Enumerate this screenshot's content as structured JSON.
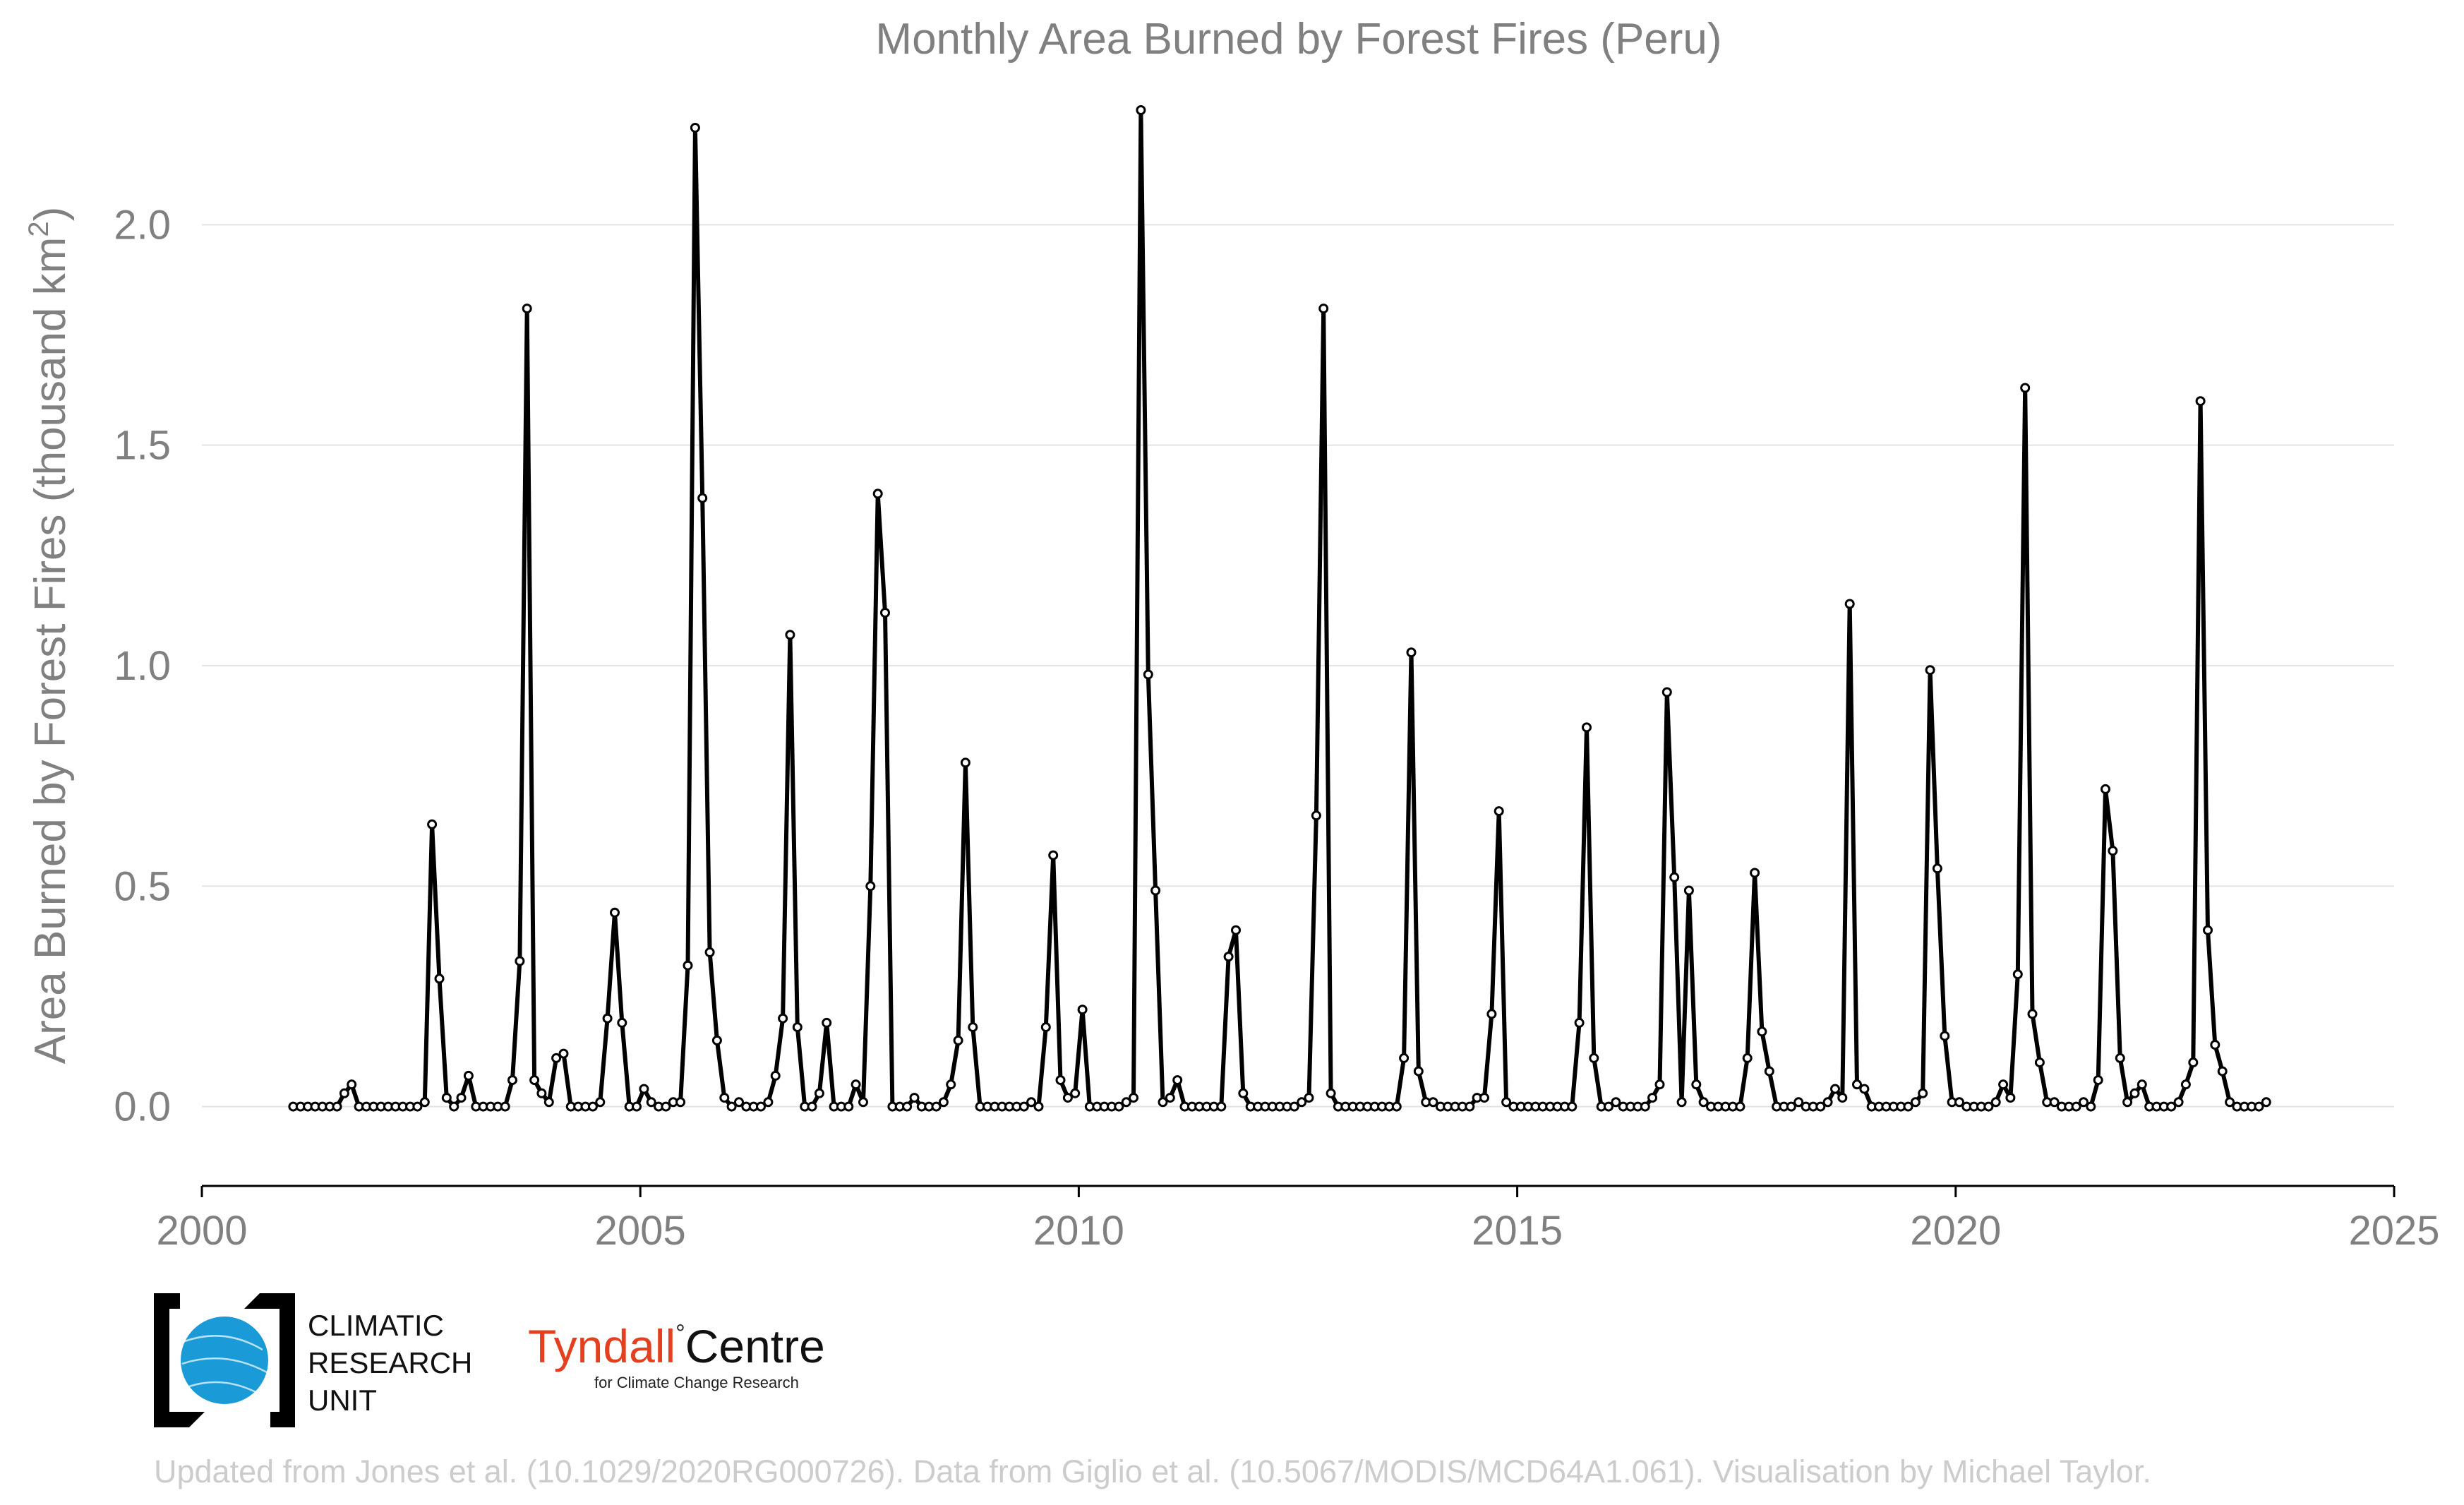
{
  "chart_data": {
    "type": "line",
    "title": "Monthly Area Burned by Forest Fires (Peru)",
    "ylabel": "Area Burned by Forest Fires (thousand km",
    "ylabel_superscript": "2",
    "ylabel_close": ")",
    "xlim": [
      2000,
      2025
    ],
    "ylim": [
      -0.18,
      2.3
    ],
    "x_ticks": [
      2000,
      2005,
      2010,
      2015,
      2020,
      2025
    ],
    "x_tick_labels": [
      "2000",
      "2005",
      "2010",
      "2015",
      "2020",
      "2025"
    ],
    "y_ticks": [
      0.0,
      0.5,
      1.0,
      1.5,
      2.0
    ],
    "y_tick_labels": [
      "0.0",
      "0.5",
      "1.0",
      "1.5",
      "2.0"
    ],
    "grid": "horizontal",
    "line_color": "#000000",
    "start_year": 2001,
    "series": [
      {
        "x_description": "monthly, January 2001 to May 2023",
        "values": [
          0.0,
          0.0,
          0.0,
          0.0,
          0.0,
          0.0,
          0.0,
          0.03,
          0.05,
          0.0,
          0.0,
          0.0,
          0.0,
          0.0,
          0.0,
          0.0,
          0.0,
          0.0,
          0.01,
          0.64,
          0.29,
          0.02,
          0.0,
          0.02,
          0.07,
          0.0,
          0.0,
          0.0,
          0.0,
          0.0,
          0.06,
          0.33,
          1.81,
          0.06,
          0.03,
          0.01,
          0.11,
          0.12,
          0.0,
          0.0,
          0.0,
          0.0,
          0.01,
          0.2,
          0.44,
          0.19,
          0.0,
          0.0,
          0.04,
          0.01,
          0.0,
          0.0,
          0.01,
          0.01,
          0.32,
          2.22,
          1.38,
          0.35,
          0.15,
          0.02,
          0.0,
          0.01,
          0.0,
          0.0,
          0.0,
          0.01,
          0.07,
          0.2,
          1.07,
          0.18,
          0.0,
          0.0,
          0.03,
          0.19,
          0.0,
          0.0,
          0.0,
          0.05,
          0.01,
          0.5,
          1.39,
          1.12,
          0.0,
          0.0,
          0.0,
          0.02,
          0.0,
          0.0,
          0.0,
          0.01,
          0.05,
          0.15,
          0.78,
          0.18,
          0.0,
          0.0,
          0.0,
          0.0,
          0.0,
          0.0,
          0.0,
          0.01,
          0.0,
          0.18,
          0.57,
          0.06,
          0.02,
          0.03,
          0.22,
          0.0,
          0.0,
          0.0,
          0.0,
          0.0,
          0.01,
          0.02,
          2.26,
          0.98,
          0.49,
          0.01,
          0.02,
          0.06,
          0.0,
          0.0,
          0.0,
          0.0,
          0.0,
          0.0,
          0.34,
          0.4,
          0.03,
          0.0,
          0.0,
          0.0,
          0.0,
          0.0,
          0.0,
          0.0,
          0.01,
          0.02,
          0.66,
          1.81,
          0.03,
          0.0,
          0.0,
          0.0,
          0.0,
          0.0,
          0.0,
          0.0,
          0.0,
          0.0,
          0.11,
          1.03,
          0.08,
          0.01,
          0.01,
          0.0,
          0.0,
          0.0,
          0.0,
          0.0,
          0.02,
          0.02,
          0.21,
          0.67,
          0.01,
          0.0,
          0.0,
          0.0,
          0.0,
          0.0,
          0.0,
          0.0,
          0.0,
          0.0,
          0.19,
          0.86,
          0.11,
          0.0,
          0.0,
          0.01,
          0.0,
          0.0,
          0.0,
          0.0,
          0.02,
          0.05,
          0.94,
          0.52,
          0.01,
          0.49,
          0.05,
          0.01,
          0.0,
          0.0,
          0.0,
          0.0,
          0.0,
          0.11,
          0.53,
          0.17,
          0.08,
          0.0,
          0.0,
          0.0,
          0.01,
          0.0,
          0.0,
          0.0,
          0.01,
          0.04,
          0.02,
          1.14,
          0.05,
          0.04,
          0.0,
          0.0,
          0.0,
          0.0,
          0.0,
          0.0,
          0.01,
          0.03,
          0.99,
          0.54,
          0.16,
          0.01,
          0.01,
          0.0,
          0.0,
          0.0,
          0.0,
          0.01,
          0.05,
          0.02,
          0.3,
          1.63,
          0.21,
          0.1,
          0.01,
          0.01,
          0.0,
          0.0,
          0.0,
          0.01,
          0.0,
          0.06,
          0.72,
          0.58,
          0.11,
          0.01,
          0.03,
          0.05,
          0.0,
          0.0,
          0.0,
          0.0,
          0.01,
          0.05,
          0.1,
          1.6,
          0.4,
          0.14,
          0.08,
          0.01,
          0.0,
          0.0,
          0.0,
          0.0,
          0.01
        ]
      }
    ]
  },
  "logos": {
    "cru_line1": "CLIMATIC",
    "cru_line2": "RESEARCH",
    "cru_line3": "UNIT",
    "tyndall_left": "Tyndall",
    "tyndall_right": "Centre",
    "tyndall_sub": "for Climate Change Research",
    "cru_blue": "#1a9ad6",
    "tyndall_red": "#e4401f"
  },
  "footer": "Updated from Jones et al. (10.1029/2020RG000726). Data from Giglio et al. (10.5067/MODIS/MCD64A1.061). Visualisation by Michael Taylor."
}
